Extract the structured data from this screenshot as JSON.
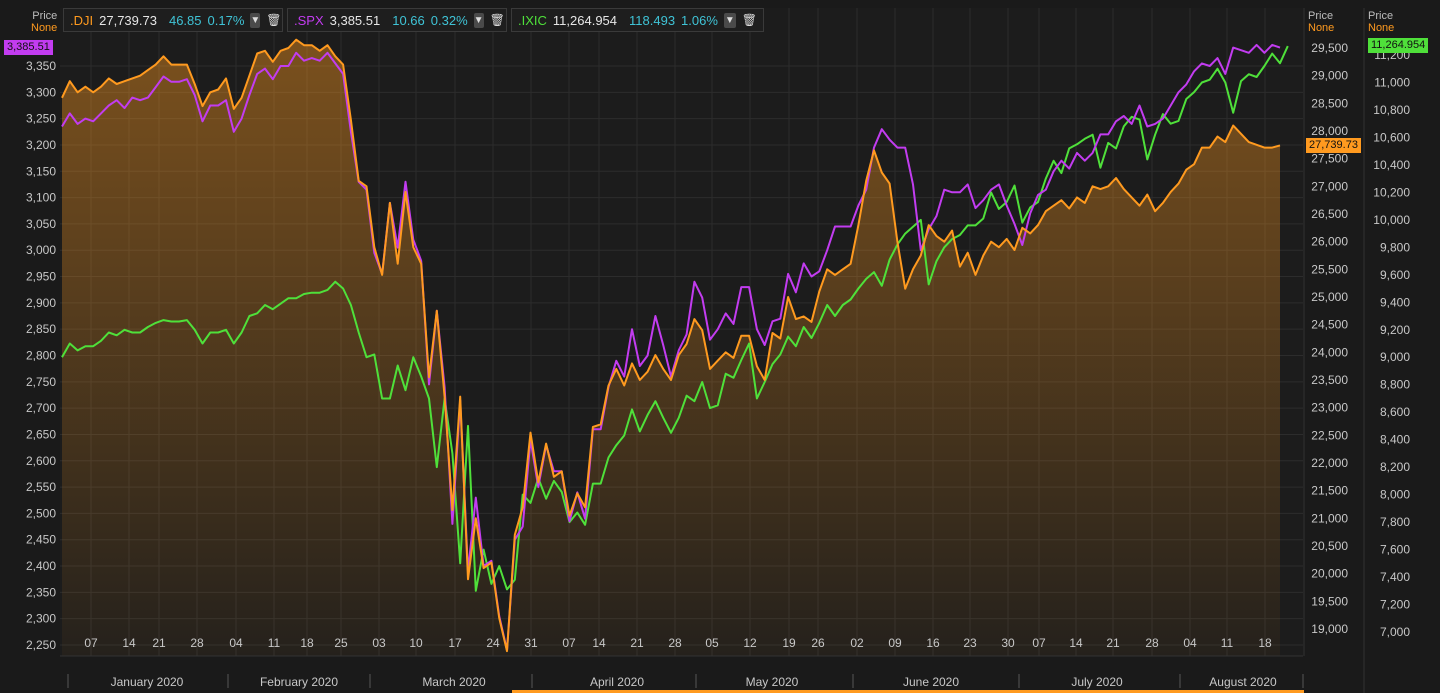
{
  "legend": [
    {
      "symbol": ".DJI",
      "value": "27,739.73",
      "change": "46.85",
      "pct": "0.17%",
      "color": "#ff9a1f"
    },
    {
      "symbol": ".SPX",
      "value": "3,385.51",
      "change": "10.66",
      "pct": "0.32%",
      "color": "#c23cf0"
    },
    {
      "symbol": ".IXIC",
      "value": "11,264.954",
      "change": "118.493",
      "pct": "1.06%",
      "color": "#4fe03a"
    }
  ],
  "axis_headers": {
    "price": "Price",
    "none": "None"
  },
  "last_tags": {
    "spx": "3,385.51",
    "dji": "27,739.73",
    "ixic": "11,264.954"
  },
  "colors": {
    "dji": "#ff9a1f",
    "spx": "#c23cf0",
    "ixic": "#4fe03a",
    "bg": "#1a1a1a",
    "grid": "#2c2c2c"
  },
  "chart_data": {
    "type": "line",
    "x_day_ticks": [
      "07",
      "14",
      "21",
      "28",
      "04",
      "11",
      "18",
      "25",
      "03",
      "10",
      "17",
      "24",
      "31",
      "07",
      "14",
      "21",
      "28",
      "05",
      "12",
      "19",
      "26",
      "02",
      "09",
      "16",
      "23",
      "30",
      "07",
      "14",
      "21",
      "28",
      "04",
      "11",
      "18"
    ],
    "month_labels": [
      "January 2020",
      "February 2020",
      "March 2020",
      "April 2020",
      "May 2020",
      "June 2020",
      "July 2020",
      "August 2020"
    ],
    "left_axis": {
      "series": ".SPX",
      "ticks": [
        2250,
        2300,
        2350,
        2400,
        2450,
        2500,
        2550,
        2600,
        2650,
        2700,
        2750,
        2800,
        2850,
        2900,
        2950,
        3000,
        3050,
        3100,
        3150,
        3200,
        3250,
        3300,
        3350
      ],
      "tick_labels": [
        "2,250",
        "2,300",
        "2,350",
        "2,400",
        "2,450",
        "2,500",
        "2,550",
        "2,600",
        "2,650",
        "2,700",
        "2,750",
        "2,800",
        "2,850",
        "2,900",
        "2,950",
        "3,000",
        "3,050",
        "3,100",
        "3,150",
        "3,200",
        "3,250",
        "3,300",
        "3,350"
      ]
    },
    "mid_axis": {
      "series": ".DJI",
      "ticks": [
        19000,
        19500,
        20000,
        20500,
        21000,
        21500,
        22000,
        22500,
        23000,
        23500,
        24000,
        24500,
        25000,
        25500,
        26000,
        26500,
        27000,
        27500,
        28000,
        28500,
        29000,
        29500
      ],
      "tick_labels": [
        "19,000",
        "19,500",
        "20,000",
        "20,500",
        "21,000",
        "21,500",
        "22,000",
        "22,500",
        "23,000",
        "23,500",
        "24,000",
        "24,500",
        "25,000",
        "25,500",
        "26,000",
        "26,500",
        "27,000",
        "27,500",
        "28,000",
        "28,500",
        "29,000",
        "29,500"
      ]
    },
    "right_axis": {
      "series": ".IXIC",
      "ticks": [
        7000,
        7200,
        7400,
        7600,
        7800,
        8000,
        8200,
        8400,
        8600,
        8800,
        9000,
        9200,
        9400,
        9600,
        9800,
        10000,
        10200,
        10400,
        10600,
        10800,
        11000,
        11200
      ],
      "tick_labels": [
        "7,000",
        "7,200",
        "7,400",
        "7,600",
        "7,800",
        "8,000",
        "8,200",
        "8,400",
        "8,600",
        "8,800",
        "9,000",
        "9,200",
        "9,400",
        "9,600",
        "9,800",
        "10,000",
        "10,200",
        "10,400",
        "10,600",
        "10,800",
        "11,000",
        "11,200"
      ]
    },
    "series": [
      {
        "name": ".SPX",
        "axis": "left",
        "values": [
          3235,
          3260,
          3240,
          3250,
          3245,
          3260,
          3275,
          3285,
          3270,
          3290,
          3285,
          3290,
          3310,
          3330,
          3320,
          3320,
          3325,
          3295,
          3245,
          3275,
          3275,
          3285,
          3225,
          3250,
          3295,
          3335,
          3345,
          3325,
          3350,
          3350,
          3375,
          3360,
          3365,
          3360,
          3375,
          3355,
          3335,
          3225,
          3130,
          3115,
          2995,
          2955,
          3090,
          3005,
          3130,
          3020,
          2980,
          2745,
          2885,
          2740,
          2480,
          2715,
          2390,
          2530,
          2400,
          2410,
          2305,
          2240,
          2450,
          2475,
          2640,
          2550,
          2630,
          2580,
          2580,
          2485,
          2540,
          2490,
          2660,
          2660,
          2740,
          2790,
          2760,
          2850,
          2780,
          2800,
          2875,
          2820,
          2760,
          2810,
          2840,
          2940,
          2910,
          2830,
          2850,
          2880,
          2860,
          2930,
          2930,
          2850,
          2820,
          2865,
          2870,
          2955,
          2920,
          2975,
          2950,
          2960,
          3000,
          3045,
          3045,
          3045,
          3085,
          3115,
          3195,
          3230,
          3210,
          3195,
          3195,
          3125,
          3000,
          3040,
          3065,
          3115,
          3110,
          3110,
          3125,
          3080,
          3095,
          3115,
          3125,
          3085,
          3050,
          3010,
          3070,
          3105,
          3115,
          3150,
          3170,
          3155,
          3185,
          3170,
          3185,
          3220,
          3220,
          3245,
          3255,
          3240,
          3275,
          3235,
          3240,
          3250,
          3275,
          3300,
          3315,
          3340,
          3355,
          3350,
          3365,
          3335,
          3385,
          3380,
          3375,
          3390,
          3375,
          3390,
          3385
        ]
      },
      {
        "name": ".DJI",
        "axis": "mid",
        "values": [
          28600,
          28900,
          28700,
          28800,
          28700,
          28800,
          28950,
          28850,
          28900,
          28950,
          29000,
          29100,
          29200,
          29350,
          29200,
          29200,
          29200,
          28850,
          28450,
          28700,
          28750,
          28950,
          28400,
          28600,
          29000,
          29400,
          29450,
          29250,
          29450,
          29500,
          29650,
          29550,
          29550,
          29450,
          29550,
          29350,
          29200,
          28200,
          27100,
          27000,
          25900,
          25400,
          26700,
          25600,
          26900,
          25900,
          25600,
          23550,
          24750,
          23200,
          21150,
          23200,
          19900,
          21000,
          20100,
          20200,
          19200,
          18600,
          20700,
          21200,
          22550,
          21650,
          22350,
          21750,
          21850,
          21050,
          21450,
          21200,
          22650,
          22700,
          23400,
          23700,
          23400,
          23800,
          23500,
          23650,
          23950,
          23700,
          23500,
          23950,
          24150,
          24600,
          24400,
          23700,
          23850,
          24000,
          23900,
          24300,
          24300,
          23750,
          23500,
          24350,
          24250,
          25000,
          24600,
          24650,
          24550,
          25100,
          25500,
          25400,
          25500,
          25600,
          26300,
          27100,
          27650,
          27250,
          27050,
          26000,
          25150,
          25500,
          25750,
          26300,
          26100,
          26000,
          26200,
          25550,
          25800,
          25400,
          25750,
          26000,
          25900,
          26050,
          25850,
          26250,
          26150,
          26300,
          26550,
          26650,
          26750,
          26600,
          26800,
          26700,
          27000,
          26950,
          27000,
          27150,
          26950,
          26800,
          26650,
          26850,
          26550,
          26700,
          26900,
          27050,
          27300,
          27400,
          27700,
          27700,
          27900,
          27800,
          28100,
          27950,
          27800,
          27750,
          27700,
          27700,
          27739.73
        ]
      },
      {
        "name": ".IXIC",
        "axis": "right",
        "values": [
          9000,
          9100,
          9050,
          9080,
          9080,
          9120,
          9180,
          9160,
          9200,
          9180,
          9180,
          9220,
          9250,
          9270,
          9260,
          9260,
          9270,
          9200,
          9100,
          9180,
          9180,
          9200,
          9100,
          9180,
          9300,
          9320,
          9380,
          9350,
          9390,
          9430,
          9430,
          9460,
          9470,
          9470,
          9490,
          9550,
          9500,
          9380,
          9180,
          9000,
          9020,
          8700,
          8700,
          8940,
          8760,
          9000,
          8860,
          8700,
          8200,
          8700,
          8300,
          7500,
          8500,
          7300,
          7600,
          7350,
          7480,
          7310,
          7380,
          8000,
          7940,
          8120,
          7970,
          8100,
          8020,
          7800,
          7870,
          7780,
          8080,
          8080,
          8270,
          8360,
          8430,
          8620,
          8460,
          8580,
          8680,
          8560,
          8450,
          8560,
          8720,
          8680,
          8820,
          8630,
          8650,
          8880,
          8850,
          8980,
          9100,
          8700,
          8820,
          8950,
          9020,
          9150,
          9080,
          9220,
          9140,
          9250,
          9380,
          9300,
          9380,
          9420,
          9500,
          9570,
          9620,
          9520,
          9710,
          9820,
          9900,
          9950,
          10000,
          9530,
          9700,
          9800,
          9860,
          9890,
          9960,
          9960,
          10010,
          10200,
          10080,
          10130,
          10250,
          9980,
          10090,
          10130,
          10300,
          10430,
          10340,
          10520,
          10550,
          10590,
          10620,
          10380,
          10560,
          10520,
          10680,
          10750,
          10730,
          10440,
          10620,
          10770,
          10700,
          10720,
          10880,
          10930,
          11000,
          11020,
          11100,
          11000,
          10780,
          11010,
          11060,
          11040,
          11120,
          11210,
          11140,
          11264.954
        ]
      }
    ]
  }
}
